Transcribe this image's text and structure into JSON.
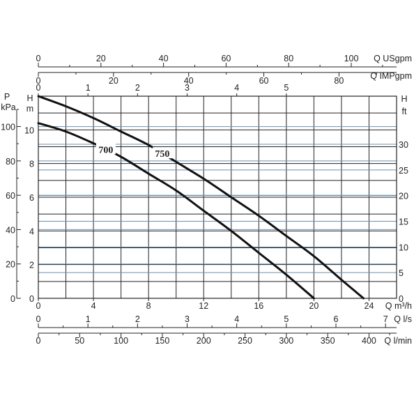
{
  "chart_data": {
    "type": "line",
    "x_unit": "Q m³/h",
    "y_unit": "H m",
    "xlim": [
      0,
      26
    ],
    "ylim": [
      0,
      12
    ],
    "x_ticks": [
      "0",
      "4",
      "8",
      "12",
      "16",
      "20",
      "24"
    ],
    "y_ticks": [
      "0",
      "2",
      "4",
      "6",
      "8",
      "10"
    ],
    "series": [
      {
        "name": "700",
        "x": [
          0,
          2,
          4,
          6,
          8,
          10,
          12,
          14,
          16,
          18,
          20
        ],
        "y": [
          10.4,
          9.9,
          9.2,
          8.4,
          7.4,
          6.4,
          5.2,
          4.0,
          2.7,
          1.4,
          0
        ]
      },
      {
        "name": "750",
        "x": [
          0,
          2,
          4,
          6,
          8,
          10,
          12,
          14,
          16,
          18,
          20,
          22,
          23.6
        ],
        "y": [
          12.0,
          11.4,
          10.7,
          9.9,
          9.1,
          8.1,
          7.1,
          6.0,
          4.9,
          3.7,
          2.5,
          1.1,
          0
        ]
      }
    ],
    "secondary_axes": {
      "top_usgpm": {
        "label": "Q USgpm",
        "ticks": [
          "0",
          "20",
          "40",
          "60",
          "80",
          "100"
        ],
        "values": [
          0,
          20,
          40,
          60,
          80,
          100
        ]
      },
      "top_impgpm": {
        "label": "Q IMPgpm",
        "ticks": [
          "0",
          "20",
          "40",
          "60",
          "80"
        ],
        "values": [
          0,
          20,
          40,
          60,
          80
        ]
      },
      "top_ls": {
        "ticks": [
          "0",
          "1",
          "2",
          "3",
          "4",
          "5"
        ],
        "values": [
          0,
          1,
          2,
          3,
          4,
          5
        ]
      },
      "left_kpa": {
        "label_line1": "P",
        "label_line2": "kPa",
        "ticks": [
          "0",
          "20",
          "40",
          "60",
          "80",
          "100"
        ],
        "values": [
          0,
          20,
          40,
          60,
          80,
          100
        ]
      },
      "right_ft": {
        "label_line1": "H",
        "label_line2": "ft",
        "ticks": [
          "0",
          "5",
          "10",
          "15",
          "20",
          "25",
          "30"
        ],
        "values": [
          0,
          5,
          10,
          15,
          20,
          25,
          30
        ]
      },
      "bottom_ls": {
        "label": "Q l/s",
        "ticks": [
          "0",
          "1",
          "2",
          "3",
          "4",
          "5",
          "6",
          "7"
        ],
        "values": [
          0,
          1,
          2,
          3,
          4,
          5,
          6,
          7
        ]
      },
      "bottom_lmin": {
        "label": "Q l/min",
        "ticks": [
          "0",
          "50",
          "100",
          "150",
          "200",
          "250",
          "300",
          "350",
          "400"
        ],
        "values": [
          0,
          50,
          100,
          150,
          200,
          250,
          300,
          350,
          400
        ]
      }
    },
    "left_m_label_line1": "H",
    "left_m_label_line2": "m",
    "grid": true
  }
}
